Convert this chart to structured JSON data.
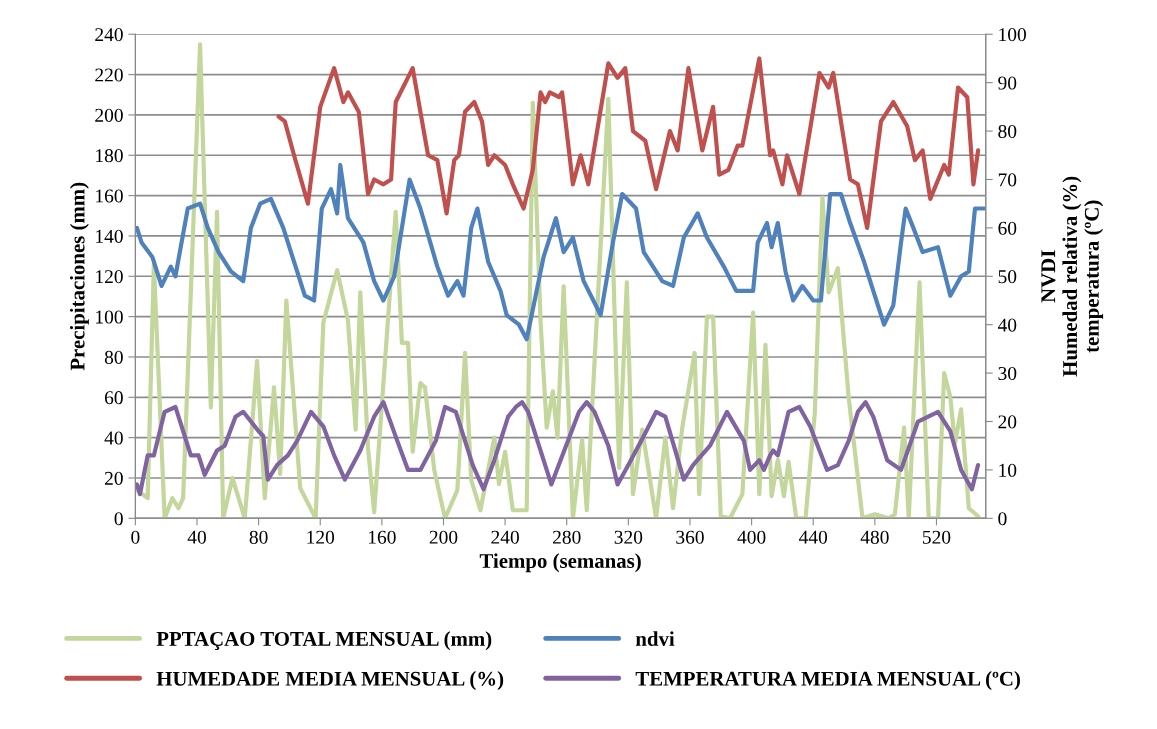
{
  "chart_data": {
    "type": "line",
    "xlabel": "Tiempo (semanas)",
    "ylabel": "Precipitaciones (mm)",
    "y2label": "NVDI\nHumedad relativa (%)\ntemperatura (ºC)",
    "xlim": [
      0,
      552
    ],
    "xticks": [
      0,
      40,
      80,
      120,
      160,
      200,
      240,
      280,
      320,
      360,
      400,
      440,
      480,
      520
    ],
    "ylim": [
      0,
      240
    ],
    "yticks": [
      0,
      20,
      40,
      60,
      80,
      100,
      120,
      140,
      160,
      180,
      200,
      220,
      240
    ],
    "y2lim": [
      0,
      100
    ],
    "y2ticks": [
      0,
      10,
      20,
      30,
      40,
      50,
      60,
      70,
      80,
      90,
      100
    ],
    "grid": "y",
    "legend": "bottom",
    "marker": "none",
    "line_style": "solid",
    "series": [
      {
        "name": "PPTAÇAO TOTAL MENSUAL (mm)",
        "color": "#c3d69b",
        "axis": "y",
        "x": [
          1,
          8,
          12,
          19,
          24,
          28,
          31,
          42,
          49,
          53,
          57,
          63,
          71,
          79,
          84,
          90,
          94,
          98,
          107,
          117,
          122,
          131,
          138,
          143,
          146,
          151,
          155,
          169,
          173,
          177,
          180,
          185,
          188,
          194,
          201,
          209,
          214,
          218,
          224,
          233,
          236,
          240,
          245,
          254,
          258,
          263,
          267,
          271,
          274,
          278,
          284,
          290,
          293,
          307,
          314,
          319,
          323,
          329,
          338,
          344,
          349,
          355,
          363,
          366,
          371,
          375,
          380,
          386,
          394,
          401,
          405,
          409,
          413,
          417,
          421,
          424,
          429,
          435,
          441,
          446,
          450,
          456,
          463,
          472,
          480,
          489,
          493,
          499,
          502,
          509,
          515,
          521,
          525,
          529,
          532,
          536,
          541,
          547
        ],
        "values": [
          14,
          10,
          126,
          0,
          10,
          5,
          10,
          235,
          55,
          152,
          0,
          20,
          0,
          78,
          10,
          65,
          22,
          108,
          15,
          0,
          97,
          123,
          98,
          44,
          112,
          35,
          3,
          152,
          87,
          87,
          33,
          67,
          65,
          24,
          0,
          14,
          82,
          19,
          4,
          40,
          17,
          33,
          4,
          4,
          206,
          98,
          45,
          63,
          40,
          115,
          0,
          39,
          4,
          208,
          25,
          117,
          12,
          44,
          0,
          40,
          5,
          45,
          82,
          12,
          100,
          100,
          1,
          0,
          12,
          102,
          12,
          86,
          11,
          29,
          11,
          28,
          0,
          0,
          52,
          159,
          112,
          124,
          60,
          0,
          2,
          0,
          2,
          45,
          0,
          117,
          0,
          0,
          72,
          60,
          37,
          54,
          5,
          1
        ]
      },
      {
        "name": "ndvi",
        "color": "#4f81bd",
        "axis": "y2",
        "x": [
          1,
          4,
          11,
          17,
          23,
          26,
          34,
          42,
          47,
          54,
          62,
          70,
          75,
          81,
          88,
          96,
          105,
          110,
          116,
          121,
          127,
          131,
          133,
          138,
          148,
          155,
          161,
          168,
          173,
          178,
          185,
          196,
          203,
          209,
          213,
          218,
          222,
          229,
          237,
          241,
          249,
          254,
          265,
          273,
          278,
          284,
          291,
          302,
          310,
          316,
          325,
          330,
          342,
          349,
          356,
          365,
          371,
          382,
          390,
          401,
          404,
          410,
          413,
          417,
          422,
          427,
          433,
          440,
          445,
          451,
          458,
          464,
          473,
          486,
          492,
          497,
          500,
          505,
          511,
          521,
          529,
          536,
          541,
          545,
          551
        ],
        "values": [
          60,
          57,
          54,
          48,
          52,
          50,
          64,
          65,
          60,
          55,
          51,
          49,
          60,
          65,
          66,
          60,
          51,
          46,
          45,
          64,
          68,
          63,
          73,
          62,
          57,
          49,
          45,
          50,
          60,
          70,
          64,
          52,
          46,
          49,
          46,
          60,
          64,
          53,
          47,
          42,
          40,
          37,
          54,
          62,
          55,
          58,
          49,
          42,
          57,
          67,
          64,
          55,
          49,
          48,
          58,
          63,
          58,
          52,
          47,
          47,
          57,
          61,
          56,
          61,
          51,
          45,
          48,
          45,
          45,
          67,
          67,
          61,
          53,
          40,
          44,
          57,
          64,
          60,
          55,
          56,
          46,
          50,
          51,
          64,
          64
        ]
      },
      {
        "name": "HUMEDADE MEDIA MENSUAL (%)",
        "color": "#c0504d",
        "axis": "y2",
        "x": [
          93,
          97,
          103,
          112,
          120,
          129,
          135,
          138,
          145,
          151,
          155,
          161,
          166,
          169,
          180,
          190,
          196,
          202,
          207,
          210,
          214,
          220,
          225,
          229,
          233,
          240,
          245,
          252,
          258,
          263,
          266,
          269,
          275,
          277,
          284,
          289,
          294,
          307,
          313,
          318,
          323,
          331,
          338,
          347,
          352,
          359,
          368,
          375,
          379,
          385,
          391,
          394,
          405,
          412,
          414,
          420,
          423,
          431,
          444,
          450,
          453,
          464,
          469,
          475,
          484,
          492,
          501,
          506,
          511,
          516,
          525,
          528,
          534,
          540,
          544,
          547
        ],
        "values": [
          83,
          82,
          75,
          65,
          85,
          93,
          86,
          88,
          84,
          67,
          70,
          69,
          70,
          86,
          93,
          75,
          74,
          63,
          74,
          75,
          84,
          86,
          82,
          73,
          75,
          73,
          69,
          64,
          72,
          88,
          86,
          88,
          87,
          88,
          69,
          75,
          69,
          94,
          91,
          93,
          80,
          78,
          68,
          80,
          76,
          93,
          76,
          85,
          71,
          72,
          77,
          77,
          95,
          75,
          76,
          69,
          75,
          67,
          92,
          89,
          92,
          70,
          69,
          60,
          82,
          86,
          81,
          74,
          76,
          66,
          73,
          71,
          89,
          87,
          69,
          76
        ]
      },
      {
        "name": "TEMPERATURA MEDIA MENSUAL (ºC)",
        "color": "#8064a2",
        "axis": "y2",
        "x": [
          1,
          3,
          8,
          12,
          19,
          26,
          36,
          41,
          45,
          53,
          58,
          65,
          70,
          80,
          83,
          86,
          92,
          99,
          105,
          114,
          122,
          129,
          136,
          146,
          155,
          161,
          170,
          177,
          185,
          195,
          201,
          208,
          219,
          226,
          233,
          242,
          247,
          251,
          255,
          261,
          270,
          288,
          293,
          298,
          307,
          313,
          320,
          330,
          338,
          344,
          356,
          362,
          373,
          384,
          395,
          399,
          405,
          408,
          412,
          414,
          417,
          424,
          431,
          438,
          449,
          456,
          463,
          469,
          474,
          479,
          488,
          497,
          508,
          521,
          529,
          536,
          543,
          547
        ],
        "values": [
          7,
          5,
          13,
          13,
          22,
          23,
          13,
          13,
          9,
          14,
          15,
          21,
          22,
          18,
          17,
          8,
          11,
          13,
          16,
          22,
          19,
          13,
          8,
          14,
          21,
          24,
          16,
          10,
          10,
          16,
          23,
          22,
          11,
          6,
          12,
          21,
          23,
          24,
          22,
          16,
          7,
          22,
          24,
          22,
          15,
          7,
          11,
          17,
          22,
          21,
          8,
          11,
          15,
          22,
          16,
          10,
          12,
          10,
          13,
          14,
          13,
          22,
          23,
          19,
          10,
          11,
          16,
          22,
          24,
          21,
          12,
          10,
          20,
          22,
          18,
          10,
          6,
          11
        ]
      }
    ]
  }
}
